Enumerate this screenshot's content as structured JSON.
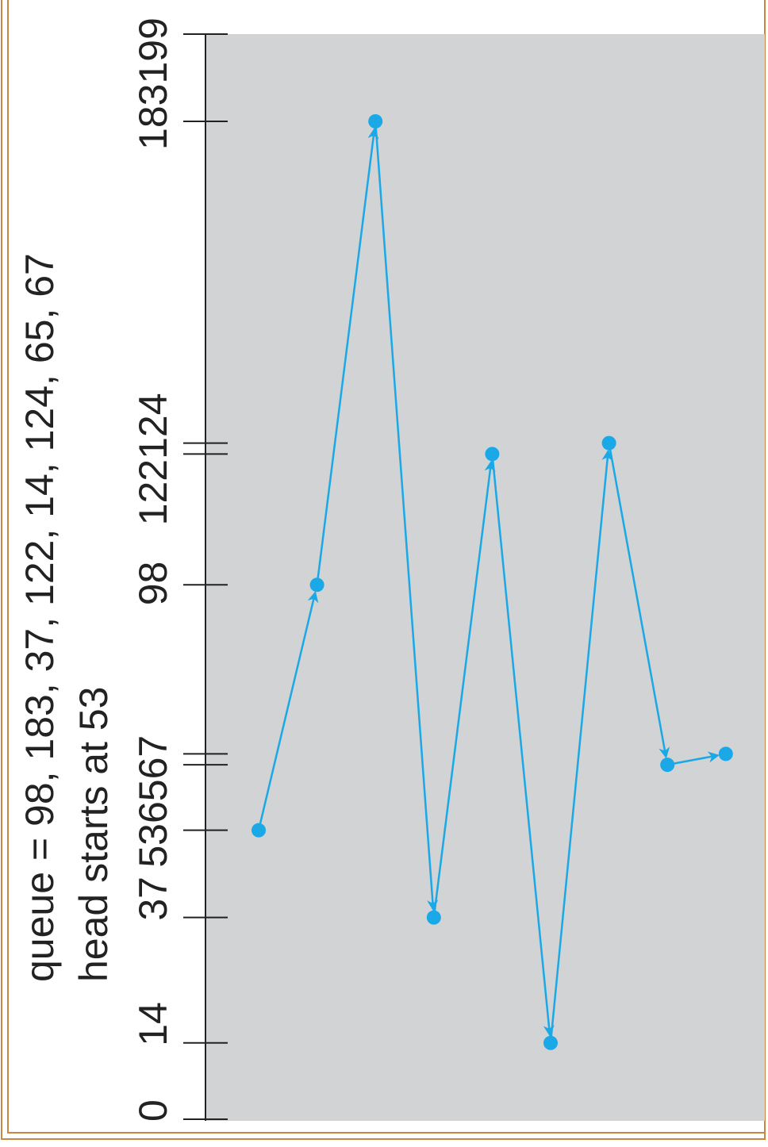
{
  "caption": {
    "queue": "queue = 98, 183, 37, 122, 14, 124, 65, 67",
    "head": "head starts at 53"
  },
  "colors": {
    "path": "#1aa8e6",
    "plot_background": "#d1d3d4",
    "axis": "#222222",
    "frame": "#c6893f"
  },
  "chart_data": {
    "type": "line",
    "orientation": "rotated-90",
    "title": "",
    "xlabel": "",
    "ylabel": "",
    "axis_range": [
      0,
      199
    ],
    "ticks": [
      {
        "value": 0,
        "label": "0"
      },
      {
        "value": 14,
        "label": "14"
      },
      {
        "value": 37,
        "label": "37"
      },
      {
        "value": 53,
        "label": "53"
      },
      {
        "value": 65,
        "label": "65"
      },
      {
        "value": 67,
        "label": "67"
      },
      {
        "value": 98,
        "label": "98"
      },
      {
        "value": 122,
        "label": "122"
      },
      {
        "value": 124,
        "label": "124"
      },
      {
        "value": 183,
        "label": "183"
      },
      {
        "value": 199,
        "label": "199"
      }
    ],
    "series": [
      {
        "cylinders": [
          53,
          98,
          183,
          37,
          122,
          14,
          124,
          65,
          67
        ]
      }
    ],
    "grid": false,
    "legend": "none"
  }
}
